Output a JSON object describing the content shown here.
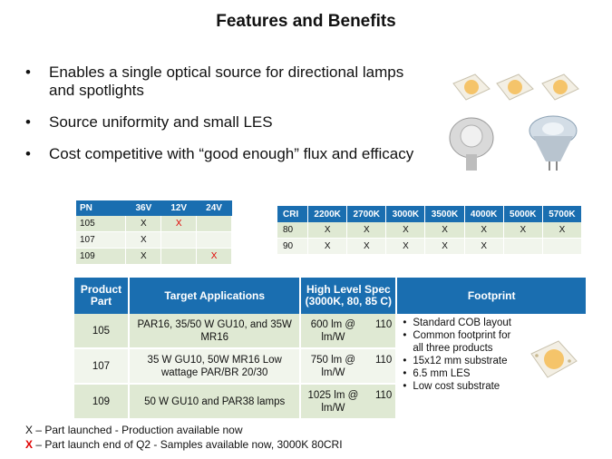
{
  "title": "Features and Benefits",
  "bullets": [
    "Enables a single optical source for directional lamps and spotlights",
    "Source uniformity and small LES",
    "Cost competitive with “good enough” flux and efficacy"
  ],
  "pn_table": {
    "headers": [
      "PN",
      "36V",
      "12V",
      "24V"
    ],
    "rows": [
      [
        "105",
        "X",
        "X",
        ""
      ],
      [
        "107",
        "X",
        "",
        ""
      ],
      [
        "109",
        "X",
        "",
        "X"
      ]
    ]
  },
  "cri_table": {
    "headers": [
      "CRI",
      "2200K",
      "2700K",
      "3000K",
      "3500K",
      "4000K",
      "5000K",
      "5700K"
    ],
    "rows": [
      [
        "80",
        "X",
        "X",
        "X",
        "X",
        "X",
        "X",
        "X"
      ],
      [
        "90",
        "X",
        "X",
        "X",
        "X",
        "X",
        "",
        ""
      ]
    ]
  },
  "main_table": {
    "headers": [
      "Product Part",
      "Target Applications",
      "High Level Spec (3000K, 80, 85 C)",
      "Footprint"
    ],
    "rows": [
      {
        "part": "105",
        "app": "PAR16, 35/50 W GU10, and 35W MR16",
        "spec": "600 lm @ lm/W",
        "eff": "110"
      },
      {
        "part": "107",
        "app": "35 W GU10, 50W MR16 Low wattage PAR/BR 20/30",
        "spec": "750 lm @ lm/W",
        "eff": "110"
      },
      {
        "part": "109",
        "app": "50 W GU10 and PAR38 lamps",
        "spec": "1025 lm @ lm/W",
        "eff": "110"
      }
    ],
    "footprint": [
      "Standard COB layout",
      "Common footprint for all three products",
      "15x12 mm substrate",
      "6.5 mm LES",
      "Low cost substrate"
    ]
  },
  "legend": {
    "line1_x": "X",
    "line1_text": " – Part launched - Production available now",
    "line2_x": "X",
    "line2_text": " – Part launch end of Q2 - Samples available now, 3000K 80CRI"
  },
  "colors": {
    "header_blue": "#1a6eb0",
    "red_x": "#e00000",
    "row_green": "#dfe9d3"
  }
}
